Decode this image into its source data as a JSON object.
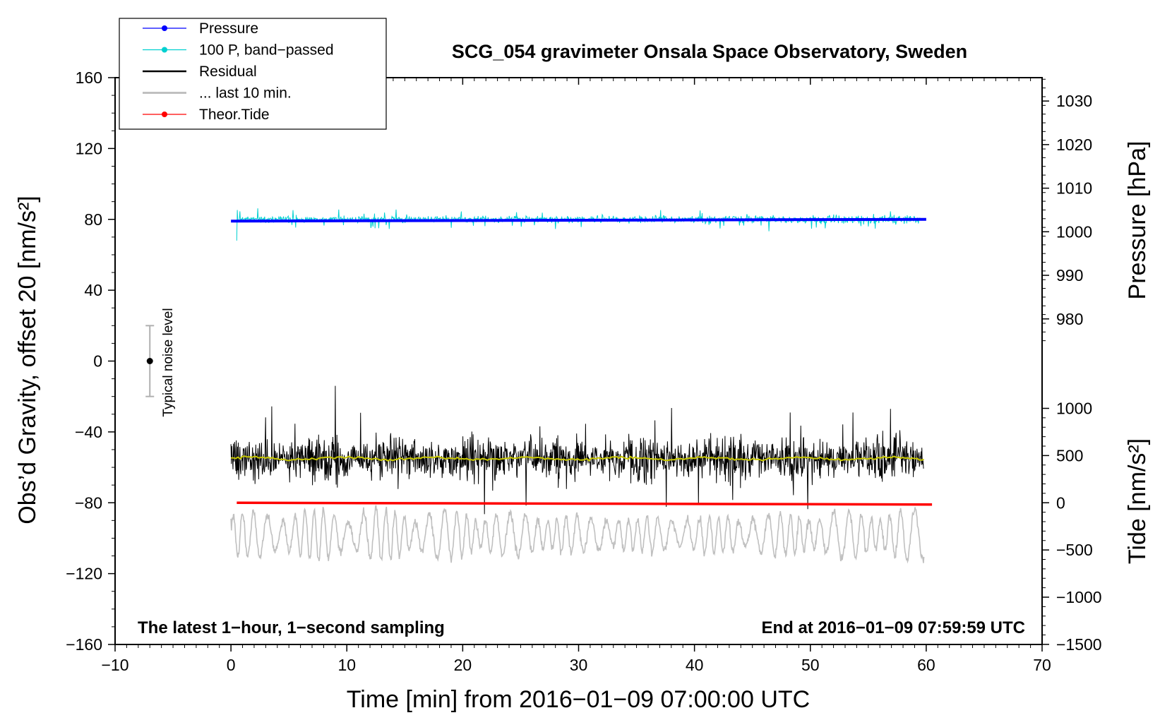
{
  "chart_data": {
    "type": "line",
    "title": "SCG_054 gravimeter Onsala Space Observatory, Sweden",
    "xlabel": "Time [min] from 2016−01−09 07:00:00 UTC",
    "ylabel_left": "Obs’d Gravity, offset 20 [nm/s²]",
    "ylabel_right_top": "Pressure [hPa]",
    "ylabel_right_bottom": "Tide [nm/s²]",
    "xlim": [
      -10,
      70
    ],
    "ylim_left": [
      -160,
      160
    ],
    "x_ticks": [
      {
        "value": -10,
        "label": "−10"
      },
      {
        "value": 0,
        "label": "0"
      },
      {
        "value": 10,
        "label": "10"
      },
      {
        "value": 20,
        "label": "20"
      },
      {
        "value": 30,
        "label": "30"
      },
      {
        "value": 40,
        "label": "40"
      },
      {
        "value": 50,
        "label": "50"
      },
      {
        "value": 60,
        "label": "60"
      },
      {
        "value": 70,
        "label": "70"
      }
    ],
    "y_left_ticks": [
      {
        "value": 160,
        "label": "160"
      },
      {
        "value": 120,
        "label": "120"
      },
      {
        "value": 80,
        "label": "80"
      },
      {
        "value": 40,
        "label": "40"
      },
      {
        "value": 0,
        "label": "0"
      },
      {
        "value": -40,
        "label": "−40"
      },
      {
        "value": -80,
        "label": "−80"
      },
      {
        "value": -120,
        "label": "−120"
      },
      {
        "value": -160,
        "label": "−160"
      }
    ],
    "pressure_axis": {
      "ticks": [
        {
          "value": 1030,
          "label": "1030"
        },
        {
          "value": 1020,
          "label": "1020"
        },
        {
          "value": 1010,
          "label": "1010"
        },
        {
          "value": 1000,
          "label": "1000"
        },
        {
          "value": 990,
          "label": "990"
        },
        {
          "value": 980,
          "label": "980"
        }
      ],
      "ref_pressure": 1000,
      "ref_gravity": 73,
      "gravity_per_hpa": 2.46
    },
    "tide_axis": {
      "ticks": [
        {
          "value": 1000,
          "label": "1000"
        },
        {
          "value": 500,
          "label": "500"
        },
        {
          "value": 0,
          "label": "0"
        },
        {
          "value": -500,
          "label": "−500"
        },
        {
          "value": -1000,
          "label": "−1000"
        },
        {
          "value": -1500,
          "label": "−1500"
        }
      ],
      "ref_tide": 0,
      "ref_gravity": -80,
      "gravity_per_unit": 0.0533
    },
    "series": [
      {
        "name": "Pressure",
        "color": "#0000ff",
        "x_start": 0,
        "x_end": 60,
        "y_start": 79,
        "y_end": 80
      },
      {
        "name": "100 P, band−passed",
        "color": "#00d0d0",
        "x_start": 0.5,
        "x_end": 59.5,
        "center": 80,
        "amplitude": 4
      },
      {
        "name": "Residual",
        "color": "#000000",
        "x_start": 0,
        "x_end": 59.8,
        "center": -55,
        "amplitude": 15
      },
      {
        "name": "... last 10 min.",
        "color": "#c0c0c0",
        "x_start": 0,
        "x_end": 59.8,
        "center": -98,
        "amplitude": 15
      },
      {
        "name": "Theor.Tide",
        "color": "#ff0000",
        "x_start": 0.5,
        "x_end": 60.5,
        "y_start": -80,
        "y_end": -81
      }
    ],
    "smoothed_residual": {
      "color": "#c8c800",
      "center": -55
    },
    "noise_level": {
      "label": "Typical noise level",
      "x": -7,
      "center": 0,
      "half_range": 20
    },
    "annotations": {
      "bottom_left": "The latest 1−hour, 1−second sampling",
      "bottom_right": "End at 2016−01−09 07:59:59 UTC"
    },
    "legend": {
      "position": "top-left",
      "entries": [
        {
          "label": "Pressure",
          "color": "#0000ff",
          "marker": true
        },
        {
          "label": "100 P, band−passed",
          "color": "#00d0d0",
          "marker": true
        },
        {
          "label": "Residual",
          "color": "#000000",
          "marker": false
        },
        {
          "label": "... last 10 min.",
          "color": "#c0c0c0",
          "marker": false
        },
        {
          "label": "Theor.Tide",
          "color": "#ff0000",
          "marker": true
        }
      ]
    }
  }
}
